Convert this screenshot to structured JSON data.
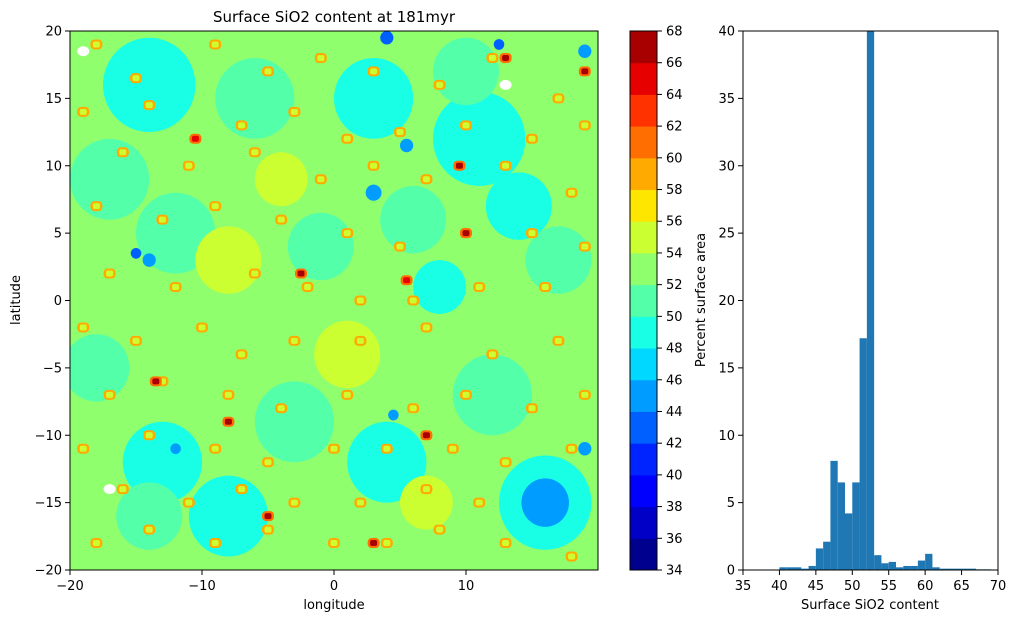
{
  "chart_data": [
    {
      "type": "heatmap",
      "title": "Surface SiO2 content at 181myr",
      "xlabel": "longitude",
      "ylabel": "latitude",
      "xlim": [
        -20,
        20
      ],
      "ylim": [
        -20,
        20
      ],
      "xticks": [
        -20,
        -10,
        0,
        10
      ],
      "xtick_labels": [
        "−20",
        "−10",
        "0",
        "10"
      ],
      "yticks": [
        -20,
        -15,
        -10,
        -5,
        0,
        5,
        10,
        15,
        20
      ],
      "ytick_labels": [
        "−20",
        "−15",
        "−10",
        "−5",
        "0",
        "5",
        "10",
        "15",
        "20"
      ],
      "colormap": "jet",
      "colorbar": {
        "levels": [
          34,
          36,
          38,
          40,
          42,
          44,
          46,
          48,
          50,
          52,
          54,
          56,
          58,
          60,
          62,
          64,
          66,
          68
        ],
        "tick_labels": [
          "34",
          "36",
          "38",
          "40",
          "42",
          "44",
          "46",
          "48",
          "50",
          "52",
          "54",
          "56",
          "58",
          "60",
          "62",
          "64",
          "66",
          "68"
        ],
        "colors": [
          "#00008f",
          "#0000c6",
          "#0000fe",
          "#0024ff",
          "#0060ff",
          "#009cff",
          "#00d8ff",
          "#18ffe6",
          "#54ffaa",
          "#90ff6e",
          "#ccff32",
          "#ffe600",
          "#ffaa00",
          "#ff6e00",
          "#ff3200",
          "#e60000",
          "#a80000"
        ]
      },
      "base_value": 52,
      "regions": [
        {
          "value": 48,
          "x": -14,
          "y": 16,
          "r": 3.5
        },
        {
          "value": 48,
          "x": 3,
          "y": 15,
          "r": 3
        },
        {
          "value": 48,
          "x": 11,
          "y": 12,
          "r": 3.5
        },
        {
          "value": 48,
          "x": 14,
          "y": 7,
          "r": 2.5
        },
        {
          "value": 48,
          "x": -13,
          "y": -12,
          "r": 3
        },
        {
          "value": 48,
          "x": -8,
          "y": -16,
          "r": 3
        },
        {
          "value": 48,
          "x": 4,
          "y": -12,
          "r": 3
        },
        {
          "value": 48,
          "x": 8,
          "y": 1,
          "r": 2
        },
        {
          "value": 48,
          "x": 16,
          "y": -15,
          "r": 3.5
        },
        {
          "value": 50,
          "x": -17,
          "y": 9,
          "r": 3
        },
        {
          "value": 50,
          "x": -6,
          "y": 15,
          "r": 3
        },
        {
          "value": 50,
          "x": -12,
          "y": 5,
          "r": 3
        },
        {
          "value": 50,
          "x": 10,
          "y": 17,
          "r": 2.5
        },
        {
          "value": 50,
          "x": -18,
          "y": -5,
          "r": 2.5
        },
        {
          "value": 50,
          "x": -3,
          "y": -9,
          "r": 3
        },
        {
          "value": 50,
          "x": 12,
          "y": -7,
          "r": 3
        },
        {
          "value": 50,
          "x": 17,
          "y": 3,
          "r": 2.5
        },
        {
          "value": 50,
          "x": 6,
          "y": 6,
          "r": 2.5
        },
        {
          "value": 50,
          "x": -1,
          "y": 4,
          "r": 2.5
        },
        {
          "value": 50,
          "x": -14,
          "y": -16,
          "r": 2.5
        },
        {
          "value": 54,
          "x": -8,
          "y": 3,
          "r": 2.5
        },
        {
          "value": 54,
          "x": 1,
          "y": -4,
          "r": 2.5
        },
        {
          "value": 54,
          "x": 7,
          "y": -15,
          "r": 2
        },
        {
          "value": 54,
          "x": -4,
          "y": 9,
          "r": 2
        },
        {
          "value": 44,
          "x": 16,
          "y": -15,
          "r": 1.8
        },
        {
          "value": 44,
          "x": 3,
          "y": 8,
          "r": 0.6
        },
        {
          "value": 44,
          "x": -14,
          "y": 3,
          "r": 0.5
        },
        {
          "value": 44,
          "x": 5.5,
          "y": 11.5,
          "r": 0.5
        },
        {
          "value": 44,
          "x": -12,
          "y": -11,
          "r": 0.4
        },
        {
          "value": 42,
          "x": 4,
          "y": 19.5,
          "r": 0.5
        },
        {
          "value": 42,
          "x": 12.5,
          "y": 19,
          "r": 0.4
        },
        {
          "value": 42,
          "x": -15,
          "y": 3.5,
          "r": 0.4
        },
        {
          "value": 44,
          "x": 4.5,
          "y": -8.5,
          "r": 0.4
        },
        {
          "value": 44,
          "x": 19,
          "y": -11,
          "r": 0.5
        },
        {
          "value": 44,
          "x": 19,
          "y": 18.5,
          "r": 0.5
        }
      ],
      "hotspots": [
        [
          -18,
          19
        ],
        [
          -15,
          16.5
        ],
        [
          -9,
          19
        ],
        [
          -5,
          17
        ],
        [
          -1,
          18
        ],
        [
          3,
          17
        ],
        [
          8,
          16
        ],
        [
          12,
          18
        ],
        [
          17,
          15
        ],
        [
          -19,
          14
        ],
        [
          -14,
          14.5
        ],
        [
          -7,
          13
        ],
        [
          -3,
          14
        ],
        [
          1,
          12
        ],
        [
          5,
          12.5
        ],
        [
          10,
          13
        ],
        [
          15,
          12
        ],
        [
          19,
          13
        ],
        [
          -16,
          11
        ],
        [
          -11,
          10
        ],
        [
          -6,
          11
        ],
        [
          -1,
          9
        ],
        [
          3,
          10
        ],
        [
          7,
          9
        ],
        [
          13,
          10
        ],
        [
          18,
          8
        ],
        [
          -18,
          7
        ],
        [
          -13,
          6
        ],
        [
          -9,
          7
        ],
        [
          -4,
          6
        ],
        [
          1,
          5
        ],
        [
          5,
          4
        ],
        [
          10,
          5
        ],
        [
          15,
          5
        ],
        [
          19,
          4
        ],
        [
          -17,
          2
        ],
        [
          -12,
          1
        ],
        [
          -6,
          2
        ],
        [
          -2,
          1
        ],
        [
          2,
          0
        ],
        [
          6,
          0
        ],
        [
          11,
          1
        ],
        [
          16,
          1
        ],
        [
          -19,
          -2
        ],
        [
          -15,
          -3
        ],
        [
          -10,
          -2
        ],
        [
          -7,
          -4
        ],
        [
          -3,
          -3
        ],
        [
          2,
          -3
        ],
        [
          7,
          -2
        ],
        [
          12,
          -4
        ],
        [
          17,
          -3
        ],
        [
          -17,
          -7
        ],
        [
          -13,
          -6
        ],
        [
          -8,
          -7
        ],
        [
          -4,
          -8
        ],
        [
          1,
          -7
        ],
        [
          6,
          -8
        ],
        [
          10,
          -7
        ],
        [
          15,
          -8
        ],
        [
          19,
          -7
        ],
        [
          -19,
          -11
        ],
        [
          -14,
          -10
        ],
        [
          -9,
          -11
        ],
        [
          -5,
          -12
        ],
        [
          0,
          -11
        ],
        [
          4,
          -11
        ],
        [
          9,
          -11
        ],
        [
          13,
          -12
        ],
        [
          18,
          -11
        ],
        [
          -16,
          -14
        ],
        [
          -11,
          -15
        ],
        [
          -7,
          -14
        ],
        [
          -3,
          -15
        ],
        [
          2,
          -15
        ],
        [
          7,
          -14
        ],
        [
          11,
          -15
        ],
        [
          -18,
          -18
        ],
        [
          -14,
          -17
        ],
        [
          -9,
          -18
        ],
        [
          -5,
          -17
        ],
        [
          0,
          -18
        ],
        [
          4,
          -18
        ],
        [
          8,
          -17
        ],
        [
          13,
          -18
        ],
        [
          18,
          -19
        ]
      ],
      "hot_peaks": [
        {
          "value": 66,
          "x": -13.5,
          "y": -6
        },
        {
          "value": 66,
          "x": -8,
          "y": -9
        },
        {
          "value": 66,
          "x": -2.5,
          "y": 2
        },
        {
          "value": 66,
          "x": -5,
          "y": -16
        },
        {
          "value": 66,
          "x": 3,
          "y": -18
        },
        {
          "value": 66,
          "x": 7,
          "y": -10
        },
        {
          "value": 66,
          "x": 9.5,
          "y": 10
        },
        {
          "value": 66,
          "x": 10,
          "y": 5
        },
        {
          "value": 66,
          "x": 13,
          "y": 18
        },
        {
          "value": 66,
          "x": 19,
          "y": 17
        },
        {
          "value": 64,
          "x": -10.5,
          "y": 12
        },
        {
          "value": 64,
          "x": 5.5,
          "y": 1.5
        }
      ],
      "missing": [
        [
          -19,
          18.5
        ],
        [
          13,
          16
        ],
        [
          -17,
          -14
        ]
      ]
    },
    {
      "type": "bar",
      "title": "",
      "xlabel": "Surface SiO2 content",
      "ylabel": "Percent surface area",
      "xlim": [
        35,
        70
      ],
      "ylim": [
        0,
        40
      ],
      "xticks": [
        35,
        40,
        45,
        50,
        55,
        60,
        65,
        70
      ],
      "yticks": [
        0,
        5,
        10,
        15,
        20,
        25,
        30,
        35,
        40
      ],
      "bin_width": 1,
      "bins": [
        [
          40,
          0.2
        ],
        [
          41,
          0.2
        ],
        [
          42,
          0.2
        ],
        [
          43,
          0.1
        ],
        [
          44,
          0.3
        ],
        [
          45,
          1.6
        ],
        [
          46,
          2.1
        ],
        [
          47,
          8.1
        ],
        [
          48,
          6.5
        ],
        [
          49,
          4.2
        ],
        [
          50,
          6.5
        ],
        [
          51,
          17.2
        ],
        [
          52,
          40.0
        ],
        [
          53,
          1.1
        ],
        [
          54,
          0.5
        ],
        [
          55,
          0.6
        ],
        [
          56,
          0.2
        ],
        [
          57,
          0.3
        ],
        [
          58,
          0.3
        ],
        [
          59,
          0.7
        ],
        [
          60,
          1.2
        ],
        [
          61,
          0.2
        ],
        [
          62,
          0.1
        ],
        [
          63,
          0.1
        ],
        [
          64,
          0.1
        ],
        [
          65,
          0.1
        ],
        [
          66,
          0.1
        ],
        [
          67,
          0.05
        ],
        [
          68,
          0.05
        ]
      ],
      "bar_color": "#1f77b4"
    }
  ]
}
